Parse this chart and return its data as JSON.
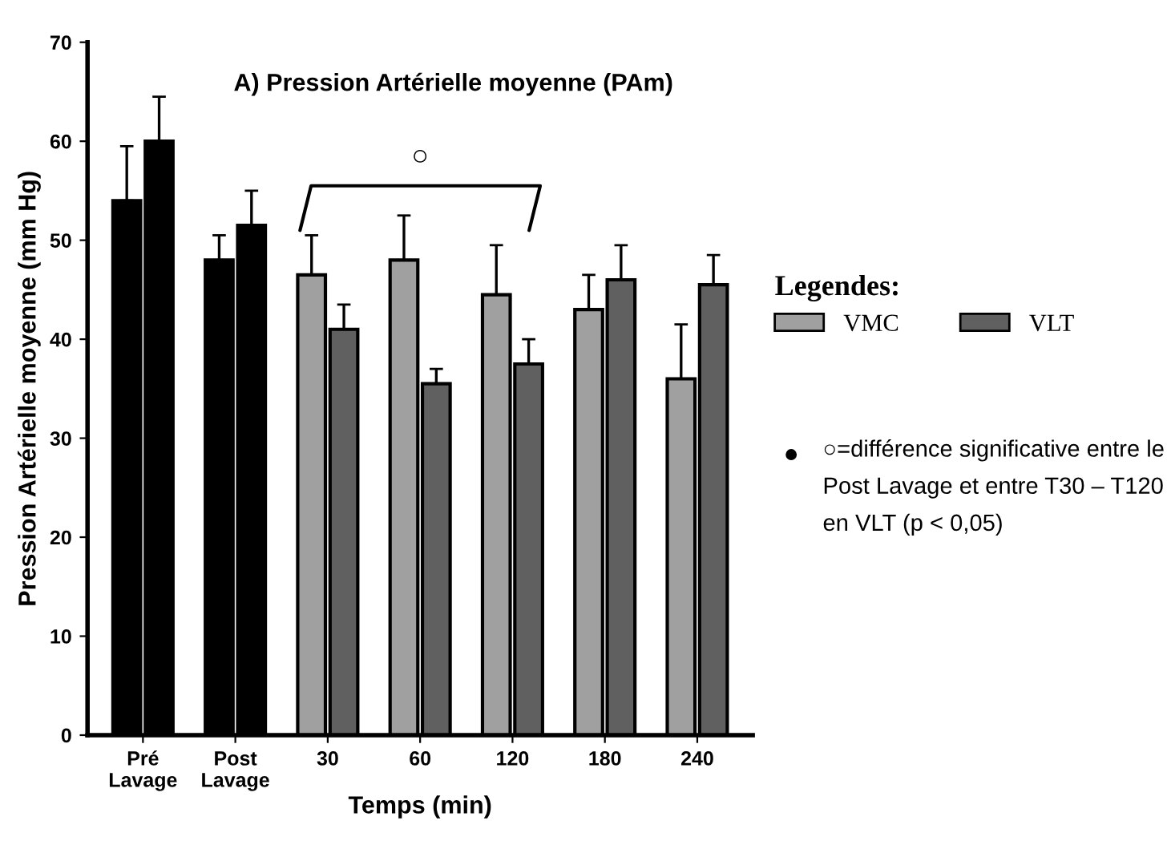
{
  "chart_data": {
    "type": "bar",
    "title": "A) Pression Artérielle moyenne (PAm)",
    "xlabel": "Temps (min)",
    "ylabel": "Pression Artérielle moyenne (mm Hg)",
    "legend_title": "Legendes:",
    "categories": [
      "Pré\nLavage",
      "Post\nLavage",
      "30",
      "60",
      "120",
      "180",
      "240"
    ],
    "series": [
      {
        "name": "VMC",
        "color": "#a0a0a0",
        "colors": [
          "#000000",
          "#000000",
          "#a0a0a0",
          "#a0a0a0",
          "#a0a0a0",
          "#a0a0a0",
          "#a0a0a0"
        ],
        "values": [
          54,
          48,
          46.5,
          48,
          44.5,
          43,
          36
        ],
        "errors": [
          [
            54,
            59.5
          ],
          [
            48,
            50.5
          ],
          [
            46.5,
            50.5
          ],
          [
            48,
            52.5
          ],
          [
            44.5,
            49.5
          ],
          [
            43,
            46.5
          ],
          [
            36,
            41.5
          ]
        ]
      },
      {
        "name": "VLT",
        "color": "#606060",
        "colors": [
          "#000000",
          "#000000",
          "#606060",
          "#606060",
          "#606060",
          "#606060",
          "#606060"
        ],
        "values": [
          60,
          51.5,
          41,
          35.5,
          37.5,
          46,
          45.5
        ],
        "errors": [
          [
            60,
            64.5
          ],
          [
            51.5,
            55
          ],
          [
            41,
            43.5
          ],
          [
            35.5,
            37
          ],
          [
            37.5,
            40
          ],
          [
            46,
            49.5
          ],
          [
            45.5,
            48.5
          ]
        ]
      }
    ],
    "ylim": [
      0,
      70
    ],
    "yticks": [
      0,
      10,
      20,
      30,
      40,
      50,
      60,
      70
    ],
    "grid": false,
    "legend": "right",
    "annotations": [
      "○",
      "○=différence significative entre le Post Lavage et entre T30 – T120 en VLT (p < 0,05)"
    ]
  }
}
